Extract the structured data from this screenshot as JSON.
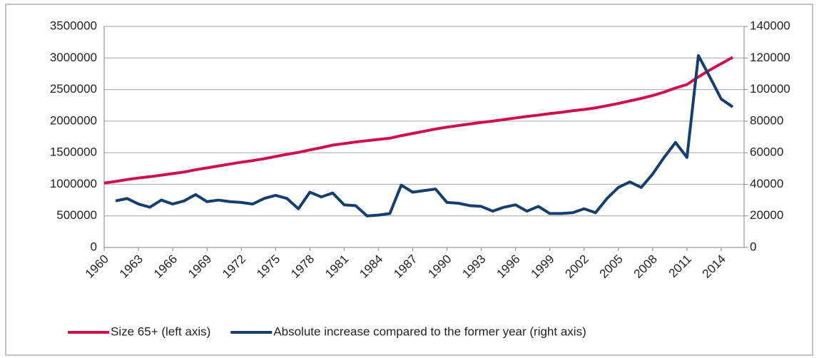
{
  "chart_data": {
    "type": "line",
    "x": [
      1960,
      1961,
      1962,
      1963,
      1964,
      1965,
      1966,
      1967,
      1968,
      1969,
      1970,
      1971,
      1972,
      1973,
      1974,
      1975,
      1976,
      1977,
      1978,
      1979,
      1980,
      1981,
      1982,
      1983,
      1984,
      1985,
      1986,
      1987,
      1988,
      1989,
      1990,
      1991,
      1992,
      1993,
      1994,
      1995,
      1996,
      1997,
      1998,
      1999,
      2000,
      2001,
      2002,
      2003,
      2004,
      2005,
      2006,
      2007,
      2008,
      2009,
      2010,
      2011,
      2012,
      2013,
      2014,
      2015
    ],
    "xlim": [
      1960,
      2016
    ],
    "xticks": [
      1960,
      1963,
      1966,
      1969,
      1972,
      1975,
      1978,
      1981,
      1984,
      1987,
      1990,
      1993,
      1996,
      1999,
      2002,
      2005,
      2008,
      2011,
      2014
    ],
    "ylim": [
      0,
      3500000
    ],
    "yticks": [
      0,
      500000,
      1000000,
      1500000,
      2000000,
      2500000,
      3000000,
      3500000
    ],
    "y2lim": [
      0,
      140000
    ],
    "y2ticks": [
      0,
      20000,
      40000,
      60000,
      80000,
      100000,
      120000,
      140000
    ],
    "grid": true,
    "legend": "bottom",
    "series": [
      {
        "name": "Size 65+ (left axis)",
        "color": "#d0104c",
        "axis": "y",
        "values": [
          1020000,
          1045000,
          1075000,
          1100000,
          1120000,
          1145000,
          1170000,
          1195000,
          1230000,
          1260000,
          1290000,
          1320000,
          1350000,
          1375000,
          1405000,
          1440000,
          1475000,
          1505000,
          1545000,
          1580000,
          1620000,
          1645000,
          1670000,
          1690000,
          1710000,
          1730000,
          1770000,
          1805000,
          1840000,
          1875000,
          1905000,
          1930000,
          1955000,
          1980000,
          2000000,
          2025000,
          2050000,
          2075000,
          2095000,
          2120000,
          2140000,
          2165000,
          2185000,
          2210000,
          2245000,
          2280000,
          2320000,
          2360000,
          2405000,
          2460000,
          2525000,
          2580000,
          2700000,
          2810000,
          2910000,
          3010000
        ]
      },
      {
        "name": "Absolute increase compared to the former year (right axis)",
        "color": "#173f6e",
        "axis": "y2",
        "values": [
          null,
          29500,
          31000,
          27500,
          25500,
          30000,
          27500,
          29500,
          33500,
          29000,
          30000,
          29000,
          28500,
          27500,
          31000,
          33000,
          31000,
          24500,
          35000,
          32000,
          34500,
          27000,
          26500,
          20000,
          20500,
          21500,
          39500,
          35000,
          36000,
          37000,
          28500,
          28000,
          26500,
          26000,
          23000,
          25500,
          27000,
          23000,
          26000,
          21500,
          21500,
          22000,
          24500,
          22000,
          31000,
          38000,
          41500,
          38000,
          46500,
          57000,
          66500,
          57000,
          121500,
          108000,
          94000,
          89000
        ]
      }
    ]
  }
}
